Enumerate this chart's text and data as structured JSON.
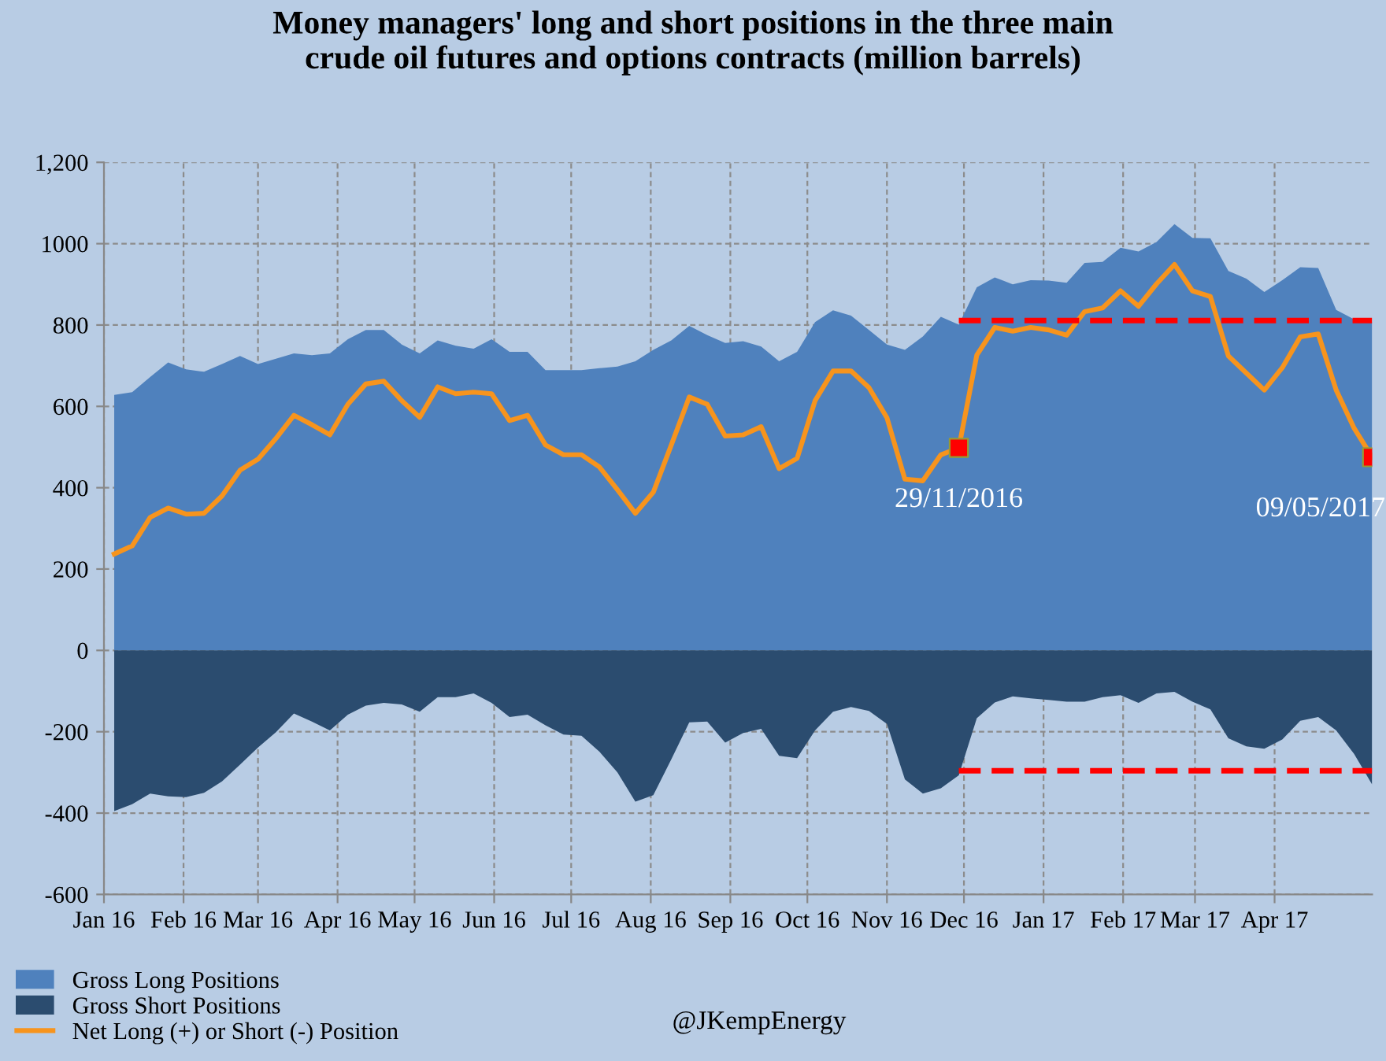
{
  "chart_data": {
    "type": "area",
    "title": "Money managers' long and short positions in the three main\ncrude oil futures and options contracts (million barrels)",
    "x": [
      "2016-01-05",
      "2016-01-12",
      "2016-01-19",
      "2016-01-26",
      "2016-02-02",
      "2016-02-09",
      "2016-02-16",
      "2016-02-23",
      "2016-03-01",
      "2016-03-08",
      "2016-03-15",
      "2016-03-22",
      "2016-03-29",
      "2016-04-05",
      "2016-04-12",
      "2016-04-19",
      "2016-04-26",
      "2016-05-03",
      "2016-05-10",
      "2016-05-17",
      "2016-05-24",
      "2016-05-31",
      "2016-06-07",
      "2016-06-14",
      "2016-06-21",
      "2016-06-28",
      "2016-07-05",
      "2016-07-12",
      "2016-07-19",
      "2016-07-26",
      "2016-08-02",
      "2016-08-09",
      "2016-08-16",
      "2016-08-23",
      "2016-08-30",
      "2016-09-06",
      "2016-09-13",
      "2016-09-20",
      "2016-09-27",
      "2016-10-04",
      "2016-10-11",
      "2016-10-18",
      "2016-10-25",
      "2016-11-01",
      "2016-11-08",
      "2016-11-15",
      "2016-11-22",
      "2016-11-29",
      "2016-12-06",
      "2016-12-13",
      "2016-12-20",
      "2016-12-27",
      "2017-01-03",
      "2017-01-10",
      "2017-01-17",
      "2017-01-24",
      "2017-01-31",
      "2017-02-07",
      "2017-02-14",
      "2017-02-21",
      "2017-02-28",
      "2017-03-07",
      "2017-03-14",
      "2017-03-21",
      "2017-03-28",
      "2017-04-04",
      "2017-04-11",
      "2017-04-18",
      "2017-04-25",
      "2017-05-02",
      "2017-05-09"
    ],
    "series": [
      {
        "name": "Gross Long Positions",
        "color": "#4f81bd",
        "values": [
          628,
          635,
          672,
          708,
          691,
          685,
          704,
          724,
          704,
          717,
          730,
          726,
          730,
          765,
          788,
          788,
          752,
          730,
          762,
          749,
          742,
          765,
          734,
          734,
          689,
          689,
          689,
          694,
          698,
          711,
          739,
          762,
          798,
          775,
          756,
          760,
          747,
          711,
          734,
          807,
          836,
          823,
          788,
          752,
          739,
          772,
          820,
          801,
          893,
          917,
          900,
          910,
          909,
          904,
          953,
          955,
          990,
          981,
          1004,
          1048,
          1014,
          1013,
          933,
          914,
          881,
          910,
          942,
          940,
          837,
          814,
          807
        ]
      },
      {
        "name": "Gross Short Positions",
        "color": "#2b4c6f",
        "values": [
          -395,
          -378,
          -352,
          -359,
          -361,
          -350,
          -322,
          -281,
          -239,
          -201,
          -155,
          -175,
          -197,
          -158,
          -136,
          -129,
          -133,
          -151,
          -115,
          -115,
          -106,
          -129,
          -164,
          -158,
          -184,
          -207,
          -210,
          -249,
          -300,
          -372,
          -356,
          -268,
          -177,
          -175,
          -227,
          -203,
          -193,
          -259,
          -265,
          -197,
          -151,
          -139,
          -149,
          -181,
          -317,
          -352,
          -339,
          -307,
          -167,
          -128,
          -113,
          -118,
          -122,
          -126,
          -126,
          -115,
          -110,
          -129,
          -106,
          -102,
          -126,
          -145,
          -216,
          -236,
          -242,
          -219,
          -173,
          -164,
          -197,
          -255,
          -330
        ]
      },
      {
        "name": "Net Long (+) or Short (-) Position",
        "type": "line",
        "color": "#f7941d",
        "values": [
          237,
          257,
          327,
          350,
          335,
          337,
          380,
          443,
          470,
          521,
          578,
          555,
          530,
          605,
          655,
          662,
          614,
          573,
          648,
          631,
          635,
          631,
          565,
          578,
          505,
          481,
          481,
          451,
          395,
          337,
          389,
          505,
          623,
          605,
          527,
          530,
          550,
          447,
          472,
          614,
          687,
          687,
          646,
          572,
          421,
          417,
          481,
          498,
          726,
          794,
          785,
          794,
          788,
          775,
          833,
          842,
          884,
          846,
          901,
          949,
          884,
          870,
          724,
          682,
          640,
          695,
          771,
          778,
          640,
          546,
          475
        ]
      },
      {
        "type": "line",
        "color": "#ff0000",
        "line_style": "dashed",
        "x": [
          "2016-11-29",
          "2017-05-09"
        ],
        "values": [
          811,
          811
        ]
      },
      {
        "type": "line",
        "color": "#ff0000",
        "line_style": "dashed",
        "x": [
          "2016-11-29",
          "2017-05-09"
        ],
        "values": [
          -296,
          -296
        ]
      },
      {
        "type": "scatter",
        "color": "#ff0000",
        "marker": "square",
        "x": [
          "2016-11-29",
          "2017-05-09"
        ],
        "values": [
          498,
          475
        ]
      }
    ],
    "xlim": [
      "2016-01-01",
      "2017-05-09"
    ],
    "xticks": [
      {
        "value": "2016-01-01",
        "label": "Jan 16"
      },
      {
        "value": "2016-02-01",
        "label": "Feb 16"
      },
      {
        "value": "2016-03-01",
        "label": "Mar 16"
      },
      {
        "value": "2016-04-01",
        "label": "Apr 16"
      },
      {
        "value": "2016-05-01",
        "label": "May 16"
      },
      {
        "value": "2016-06-01",
        "label": "Jun 16"
      },
      {
        "value": "2016-07-01",
        "label": "Jul 16"
      },
      {
        "value": "2016-08-01",
        "label": "Aug 16"
      },
      {
        "value": "2016-09-01",
        "label": "Sep 16"
      },
      {
        "value": "2016-10-01",
        "label": "Oct 16"
      },
      {
        "value": "2016-11-01",
        "label": "Nov 16"
      },
      {
        "value": "2016-12-01",
        "label": "Dec 16"
      },
      {
        "value": "2017-01-01",
        "label": "Jan 17"
      },
      {
        "value": "2017-02-01",
        "label": "Feb 17"
      },
      {
        "value": "2017-03-01",
        "label": "Mar 17"
      },
      {
        "value": "2017-04-01",
        "label": "Apr 17"
      }
    ],
    "ylim": [
      -600,
      1200
    ],
    "yticks": [
      -600,
      -400,
      -200,
      0,
      200,
      400,
      600,
      800,
      1000,
      {
        "value": 1200,
        "label": "1,200"
      }
    ],
    "grid": true,
    "legend": "bottom left",
    "annotations": [
      {
        "text": "29/11/2016",
        "x": "2016-11-29",
        "y": 498
      },
      {
        "text": "09/05/2017",
        "x": "2017-05-09",
        "y": 475
      },
      "@JKempEnergy"
    ]
  }
}
